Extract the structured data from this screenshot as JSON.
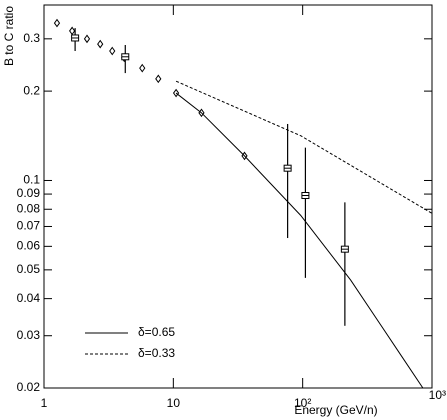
{
  "chart_data": {
    "type": "scatter",
    "xlabel": "Energy (GeV/n)",
    "ylabel": "B to C ratio",
    "log_x": true,
    "log_y": true,
    "xlim": [
      1,
      1000
    ],
    "ylim": [
      0.02,
      0.39
    ],
    "xticks": [
      1,
      10,
      {
        "value": 100,
        "label": "10²"
      },
      {
        "value": 1000,
        "label": "10³"
      }
    ],
    "yticks": [
      0.02,
      0.03,
      0.04,
      0.05,
      0.06,
      0.07,
      0.08,
      0.09,
      0.1,
      0.2,
      0.3
    ],
    "color": "#000000",
    "series": [
      {
        "marker": "diamond",
        "x": [
          1.26,
          1.65,
          2.15,
          2.72,
          3.37,
          4.17,
          5.75,
          7.65,
          10.5,
          16.5,
          35.5
        ],
        "values": [
          0.339,
          0.319,
          0.3,
          0.288,
          0.273,
          0.259,
          0.239,
          0.22,
          0.197,
          0.169,
          0.121
        ]
      },
      {
        "marker": "cross",
        "x": [
          1.74,
          4.25,
          76.5,
          105,
          212
        ],
        "values": [
          0.302,
          0.261,
          0.11,
          0.089,
          0.0587
        ],
        "lower": [
          0.273,
          0.23,
          0.064,
          0.047,
          0.0324
        ],
        "upper": [
          0.326,
          0.286,
          0.155,
          0.129,
          0.0844
        ]
      },
      {
        "name": "δ=0.65",
        "line": "solid",
        "x": [
          10.5,
          16.5,
          35.5,
          96.5,
          235,
          575,
          850
        ],
        "values": [
          0.197,
          0.169,
          0.121,
          0.0763,
          0.0462,
          0.0258,
          0.02
        ]
      },
      {
        "name": "δ=0.33",
        "line": "dashed",
        "x": [
          10.5,
          96.5,
          1000
        ],
        "values": [
          0.216,
          0.1415,
          0.0775
        ]
      }
    ]
  }
}
